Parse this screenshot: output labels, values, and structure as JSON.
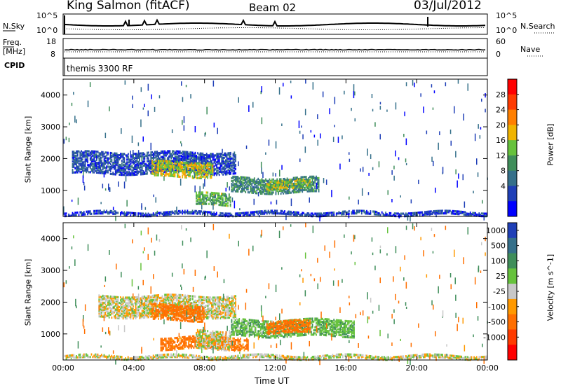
{
  "header": {
    "station": "King Salmon (fitACF)",
    "beam": "Beam 02",
    "date": "03/Jul/2012"
  },
  "status_panels": {
    "nsky_label": "N.Sky",
    "freq_label": "Freq.",
    "mhz_label": "[MHz]",
    "cpid_label": "CPID",
    "nsearch_label": "N.Search",
    "nave_label": "Nave",
    "nsky_ticks": [
      "10^5",
      "10^0"
    ],
    "nsearch_ticks": [
      "10^5",
      "10^0"
    ],
    "freq_ticks": [
      "18",
      "8"
    ],
    "nave_ticks": [
      "60",
      "0"
    ],
    "cpid_text": "themis 3300 RF"
  },
  "colors": {
    "power_scale": [
      "#0000ff",
      "#1f3fb7",
      "#35708a",
      "#3f8e5a",
      "#66c23c",
      "#f0b400",
      "#ff7f00",
      "#ff3b00",
      "#ff0000"
    ],
    "velocity_scale": [
      "#1f3fb7",
      "#35708a",
      "#3f8e5a",
      "#66c23c",
      "#c8c8c8",
      "#ff9900",
      "#ff6f00",
      "#ff3b00",
      "#ff0000"
    ],
    "ground_scatter": "#c8c8c8"
  },
  "chart_data": [
    {
      "type": "heatmap",
      "title": "",
      "xlabel": "Time UT",
      "ylabel": "Slant Range [km]",
      "colorbar_label": "Power [dB]",
      "colorbar_ticks": [
        "28",
        "24",
        "20",
        "16",
        "12",
        "8",
        "4"
      ],
      "x_ticks": [
        "00:00",
        "04:00",
        "08:00",
        "12:00",
        "16:00",
        "20:00",
        "00:00"
      ],
      "y_ticks": [
        "4000",
        "3000",
        "2000",
        "1000"
      ],
      "xlim": [
        "00:00",
        "24:00"
      ],
      "ylim": [
        180,
        4500
      ],
      "colorbar_range": [
        0,
        32
      ],
      "scatter_regions": [
        {
          "start_hour": 0.5,
          "end_hour": 9.8,
          "range_low_km": 1500,
          "range_high_km": 2200,
          "power_db": 6
        },
        {
          "start_hour": 5.0,
          "end_hour": 8.5,
          "range_low_km": 1400,
          "range_high_km": 1900,
          "power_db": 18
        },
        {
          "start_hour": 9.5,
          "end_hour": 14.5,
          "range_low_km": 900,
          "range_high_km": 1400,
          "power_db": 11
        },
        {
          "start_hour": 11.5,
          "end_hour": 14.0,
          "range_low_km": 1000,
          "range_high_km": 1300,
          "power_db": 16
        },
        {
          "start_hour": 7.5,
          "end_hour": 9.5,
          "range_low_km": 500,
          "range_high_km": 900,
          "power_db": 14
        },
        {
          "start_hour": 0.0,
          "end_hour": 24.0,
          "range_low_km": 200,
          "range_high_km": 320,
          "power_db": 5
        }
      ]
    },
    {
      "type": "heatmap",
      "title": "",
      "xlabel": "Time UT",
      "ylabel": "Slant Range [km]",
      "colorbar_label": "Velocity [m s^-1]",
      "colorbar_ticks": [
        "1000",
        "500",
        "100",
        "25",
        "-25",
        "-100",
        "-500",
        "-1000"
      ],
      "x_ticks": [
        "00:00",
        "04:00",
        "08:00",
        "12:00",
        "16:00",
        "20:00",
        "00:00"
      ],
      "y_ticks": [
        "4000",
        "3000",
        "2000",
        "1000"
      ],
      "xlim": [
        "00:00",
        "24:00"
      ],
      "ylim": [
        180,
        4500
      ],
      "scatter_regions": [
        {
          "start_hour": 2.0,
          "end_hour": 9.8,
          "range_low_km": 1500,
          "range_high_km": 2200,
          "velocity": 0
        },
        {
          "start_hour": 5.0,
          "end_hour": 8.0,
          "range_low_km": 1400,
          "range_high_km": 1900,
          "velocity": -150
        },
        {
          "start_hour": 9.5,
          "end_hour": 16.5,
          "range_low_km": 900,
          "range_high_km": 1450,
          "velocity": 80
        },
        {
          "start_hour": 11.5,
          "end_hour": 14.0,
          "range_low_km": 1000,
          "range_high_km": 1400,
          "velocity": -150
        },
        {
          "start_hour": 5.5,
          "end_hour": 10.5,
          "range_low_km": 500,
          "range_high_km": 900,
          "velocity": -150
        },
        {
          "start_hour": 7.5,
          "end_hour": 9.5,
          "range_low_km": 500,
          "range_high_km": 1100,
          "velocity": 0
        },
        {
          "start_hour": 0.0,
          "end_hour": 24.0,
          "range_low_km": 200,
          "range_high_km": 320,
          "velocity": 0
        }
      ]
    }
  ]
}
